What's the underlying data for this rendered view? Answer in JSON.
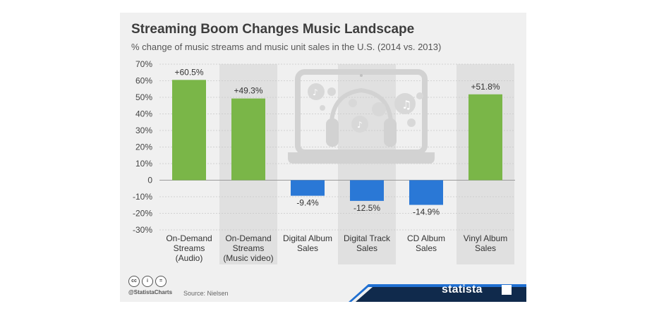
{
  "header": {
    "title": "Streaming Boom Changes Music Landscape",
    "subtitle": "% change of music streams and music unit sales in the U.S. (2014 vs. 2013)"
  },
  "footer": {
    "cc_icons": [
      "cc-icon",
      "by-icon",
      "nd-icon"
    ],
    "cc_glyphs": [
      "cc",
      "i",
      "="
    ],
    "handle": "@StatistaCharts",
    "source": "Source: Nielsen",
    "brand": "statista",
    "brand_color": "#102a4c",
    "accent_color": "#1f6fd1"
  },
  "chart_data": {
    "type": "bar",
    "categories": [
      [
        "On-Demand",
        "Streams",
        "(Audio)"
      ],
      [
        "On-Demand",
        "Streams",
        "(Music video)"
      ],
      [
        "Digital Album",
        "Sales"
      ],
      [
        "Digital Track",
        "Sales"
      ],
      [
        "CD Album",
        "Sales"
      ],
      [
        "Vinyl Album",
        "Sales"
      ]
    ],
    "values": [
      60.5,
      49.3,
      -9.4,
      -12.5,
      -14.9,
      51.8
    ],
    "data_labels": [
      "+60.5%",
      "+49.3%",
      "-9.4%",
      "-12.5%",
      "-14.9%",
      "+51.8%"
    ],
    "ylim": [
      -30,
      70
    ],
    "yticks": [
      70,
      60,
      50,
      40,
      30,
      20,
      10,
      0,
      -10,
      -20,
      -30
    ],
    "ytick_labels": [
      "70%",
      "60%",
      "50%",
      "40%",
      "30%",
      "20%",
      "10%",
      "0",
      "-10%",
      "-20%",
      "-30%"
    ],
    "colors": {
      "positive": "#7ab648",
      "negative": "#2a78d6"
    },
    "band_color": "#e0e0e0",
    "grid": true,
    "illustration": "laptop-headphones-music-icon"
  }
}
